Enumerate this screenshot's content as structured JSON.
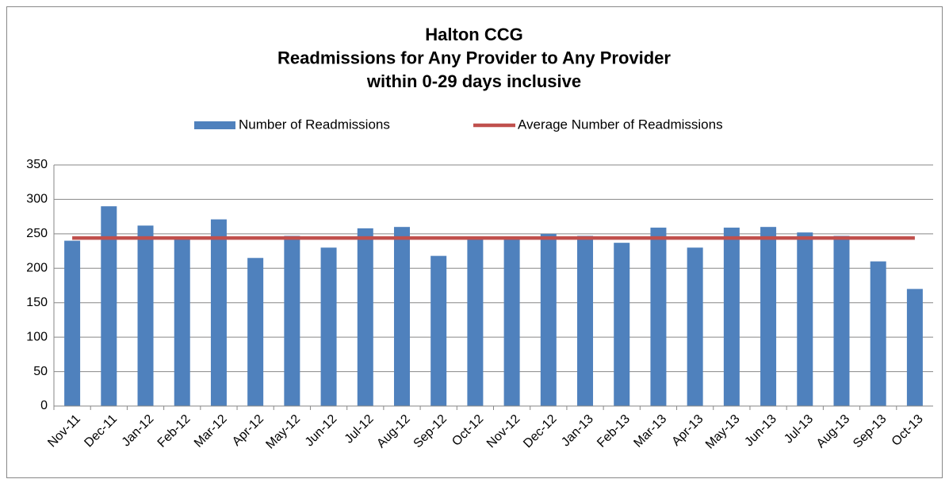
{
  "chart_data": {
    "type": "bar",
    "title": [
      "Halton CCG",
      "Readmissions for Any Provider to Any Provider",
      "within 0-29 days inclusive"
    ],
    "categories": [
      "Nov-11",
      "Dec-11",
      "Jan-12",
      "Feb-12",
      "Mar-12",
      "Apr-12",
      "May-12",
      "Jun-12",
      "Jul-12",
      "Aug-12",
      "Sep-12",
      "Oct-12",
      "Nov-12",
      "Dec-12",
      "Jan-13",
      "Feb-13",
      "Mar-13",
      "Apr-13",
      "May-13",
      "Jun-13",
      "Jul-13",
      "Aug-13",
      "Sep-13",
      "Oct-13"
    ],
    "series": [
      {
        "name": "Number of Readmissions",
        "type": "bar",
        "color": "#4f81bd",
        "values": [
          240,
          290,
          262,
          245,
          271,
          215,
          247,
          230,
          258,
          260,
          218,
          245,
          245,
          250,
          247,
          237,
          259,
          230,
          259,
          260,
          252,
          247,
          210,
          170
        ]
      },
      {
        "name": "Average Number of Readmissions",
        "type": "line",
        "color": "#c0504d",
        "values": [
          244,
          244,
          244,
          244,
          244,
          244,
          244,
          244,
          244,
          244,
          244,
          244,
          244,
          244,
          244,
          244,
          244,
          244,
          244,
          244,
          244,
          244,
          244,
          244
        ]
      }
    ],
    "ylim": [
      0,
      350
    ],
    "yticks": [
      0,
      50,
      100,
      150,
      200,
      250,
      300,
      350
    ],
    "grid": true,
    "legend": "top"
  }
}
